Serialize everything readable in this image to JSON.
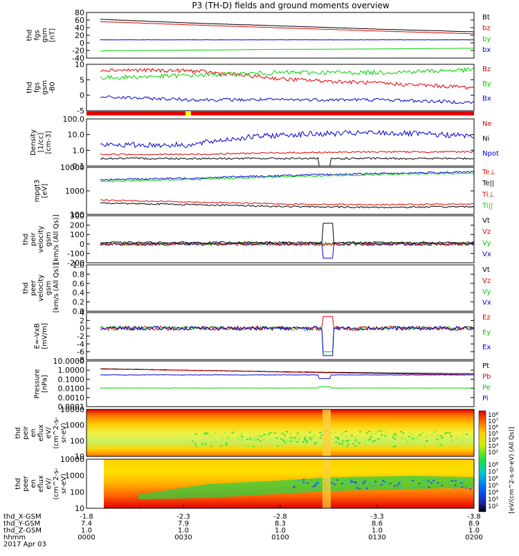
{
  "title": "P3 (TH-D) fields and ground moments overview",
  "colors": {
    "black": "#000000",
    "red": "#e00000",
    "green": "#00d000",
    "blue": "#0000d0",
    "yellow": "#ffff00"
  },
  "panels": [
    {
      "id": "fgs",
      "ylabel": [
        "thd",
        "fgs",
        "gsm",
        "[nT]"
      ],
      "yticks": [
        "80",
        "60",
        "40",
        "20",
        "0",
        "-20",
        "-40"
      ],
      "ymin": -40,
      "ymax": 80,
      "log": false,
      "legend": [
        {
          "t": "Bt",
          "c": "black"
        },
        {
          "t": "bz",
          "c": "red"
        },
        {
          "t": "by",
          "c": "green"
        },
        {
          "t": "bx",
          "c": "blue"
        }
      ]
    },
    {
      "id": "fgs_dsl",
      "ylabel": [
        "thd",
        "fgs",
        "gsm",
        "-B0"
      ],
      "yticks": [
        "10",
        "5",
        "0",
        "-5"
      ],
      "ymin": -7,
      "ymax": 10,
      "log": false,
      "legend": [
        {
          "t": "Bz",
          "c": "red"
        },
        {
          "t": "By",
          "c": "green"
        },
        {
          "t": "Bx",
          "c": "blue"
        }
      ]
    },
    {
      "id": "density",
      "ylabel": [
        "Density",
        "[1/cc]",
        "[cm-3]"
      ],
      "yticks": [
        "100.0",
        "10.0",
        "1.0",
        "0.1"
      ],
      "ymin": 0.1,
      "ymax": 100,
      "log": true,
      "legend": [
        {
          "t": "Ne",
          "c": "red"
        },
        {
          "t": "Ni",
          "c": "black"
        },
        {
          "t": "Npot",
          "c": "blue"
        }
      ]
    },
    {
      "id": "temp",
      "ylabel": [
        "mpgt3",
        "[eV]"
      ],
      "yticks": [
        "10000",
        "1000",
        "100"
      ],
      "ymin": 50,
      "ymax": 10000,
      "log": true,
      "legend": [
        {
          "t": "Te⊥",
          "c": "red"
        },
        {
          "t": "Te||",
          "c": "black"
        },
        {
          "t": "Ti⊥",
          "c": "red"
        },
        {
          "t": "Ti||",
          "c": "green"
        }
      ]
    },
    {
      "id": "peir_vel",
      "ylabel": [
        "thd",
        "peir",
        "velocity",
        "gsm",
        "[km/s (All Qs)]"
      ],
      "yticks": [
        "300",
        "200",
        "100",
        "0",
        "-100",
        "-200"
      ],
      "ymin": -200,
      "ymax": 300,
      "log": false,
      "legend": [
        {
          "t": "Vt",
          "c": "black"
        },
        {
          "t": "Vz",
          "c": "red"
        },
        {
          "t": "Vy",
          "c": "green"
        },
        {
          "t": "Vx",
          "c": "blue"
        }
      ]
    },
    {
      "id": "peer_vel",
      "ylabel": [
        "thd",
        "peer",
        "velocity",
        "gsm",
        "[km/s (All Qs)]"
      ],
      "yticks": [
        "1.0",
        "0.8",
        "0.6",
        "0.4",
        "0.2",
        "0.0"
      ],
      "ymin": 0,
      "ymax": 1,
      "log": false,
      "legend": [
        {
          "t": "Vt",
          "c": "black"
        },
        {
          "t": "Vz",
          "c": "red"
        },
        {
          "t": "Vy",
          "c": "green"
        },
        {
          "t": "Vx",
          "c": "blue"
        }
      ]
    },
    {
      "id": "efield",
      "ylabel": [
        "E=-VxB",
        "[mV/m]"
      ],
      "yticks": [
        "4",
        "2",
        "0",
        "-2",
        "-4",
        "-6",
        "-8"
      ],
      "ymin": -8,
      "ymax": 4,
      "log": false,
      "legend": [
        {
          "t": "Ez",
          "c": "red"
        },
        {
          "t": "Ey",
          "c": "green"
        },
        {
          "t": "Ex",
          "c": "blue"
        }
      ]
    },
    {
      "id": "pressure",
      "ylabel": [
        "Pressure",
        "[nPa]"
      ],
      "yticks": [
        "10.0000",
        "1.0000",
        "0.1000",
        "0.0100",
        "0.0010",
        "0.0001"
      ],
      "ymin": 0.0001,
      "ymax": 10,
      "log": true,
      "legend": [
        {
          "t": "Pt",
          "c": "black"
        },
        {
          "t": "Pb",
          "c": "red"
        },
        {
          "t": "Pe",
          "c": "green"
        },
        {
          "t": "Pi",
          "c": "blue"
        }
      ]
    },
    {
      "id": "peir_en",
      "ylabel": [
        "thd",
        "peir",
        "en",
        "eflux",
        "eV/",
        "(cm^2-s-",
        "sr-eV)"
      ],
      "yticks": [
        "10000",
        "1000",
        "100",
        "10"
      ],
      "ymin": 5,
      "ymax": 30000,
      "log": true,
      "legend": []
    },
    {
      "id": "peer_en",
      "ylabel": [
        "thd",
        "peer",
        "en",
        "eflux",
        "eV/",
        "(cm^2-s-",
        "sr-eV)"
      ],
      "yticks": [
        "10000",
        "1000",
        "100",
        "10"
      ],
      "ymin": 5,
      "ymax": 30000,
      "log": true,
      "legend": []
    }
  ],
  "colorbar": {
    "ticks": [
      "10⁸",
      "10⁷",
      "10⁶",
      "10⁵",
      "10⁴",
      "10³",
      "10²"
    ],
    "ticks2": [
      "10⁸",
      "10⁷",
      "10⁶",
      "10⁵",
      "10⁴",
      "10³",
      "10²"
    ],
    "label": "[eV/(cm^2-s-sr-eV) (All Qs)]"
  },
  "xaxis": {
    "rows": [
      {
        "name": "thd_X-GSM",
        "vals": [
          "-1.8",
          "-2.3",
          "-2.8",
          "-3.3",
          "-3.8"
        ]
      },
      {
        "name": "thd_Y-GSM",
        "vals": [
          "7.4",
          "7.9",
          "8.3",
          "8.6",
          "8.9"
        ]
      },
      {
        "name": "thd_Z-GSM",
        "vals": [
          "1.0",
          "1.0",
          "1.0",
          "1.0",
          "1.0"
        ]
      },
      {
        "name": "hhmm",
        "vals": [
          "0000",
          "0030",
          "0100",
          "0130",
          "0200"
        ]
      }
    ],
    "date": "2017 Apr 03"
  },
  "chart_data": {
    "type": "line",
    "title": "P3 (TH-D) fields and ground moments overview",
    "x": [
      "0000",
      "0030",
      "0100",
      "0130",
      "0200"
    ],
    "xlabel": "hhmm",
    "series": [
      {
        "name": "Bt",
        "values": [
          62,
          52,
          44,
          36,
          29
        ]
      },
      {
        "name": "bz",
        "values": [
          56,
          47,
          39,
          31,
          24
        ]
      },
      {
        "name": "by",
        "values": [
          8,
          8,
          8,
          8,
          8
        ]
      },
      {
        "name": "bx",
        "values": [
          -21,
          -19,
          -17,
          -16,
          -14
        ]
      },
      {
        "name": "Bz",
        "values": [
          8,
          7.5,
          4,
          2,
          1
        ]
      },
      {
        "name": "By",
        "values": [
          5,
          6,
          7,
          7,
          8
        ]
      },
      {
        "name": "Bx",
        "values": [
          -2,
          -3,
          -3,
          -3,
          -4
        ]
      },
      {
        "name": "Ni",
        "values": [
          2,
          2,
          10,
          13,
          8
        ]
      },
      {
        "name": "Ne",
        "values": [
          0.5,
          0.5,
          0.7,
          0.8,
          0.8
        ]
      },
      {
        "name": "Npot",
        "values": [
          0.3,
          0.3,
          0.3,
          0.3,
          0.3
        ]
      },
      {
        "name": "Pt",
        "values": [
          1.3,
          0.9,
          0.6,
          0.5,
          0.4
        ]
      },
      {
        "name": "Pb",
        "values": [
          1.3,
          0.9,
          0.6,
          0.4,
          0.3
        ]
      },
      {
        "name": "Pe",
        "values": [
          0.01,
          0.01,
          0.01,
          0.01,
          0.01
        ]
      },
      {
        "name": "Pi",
        "values": [
          0.3,
          0.3,
          0.3,
          0.3,
          0.3
        ]
      }
    ]
  }
}
